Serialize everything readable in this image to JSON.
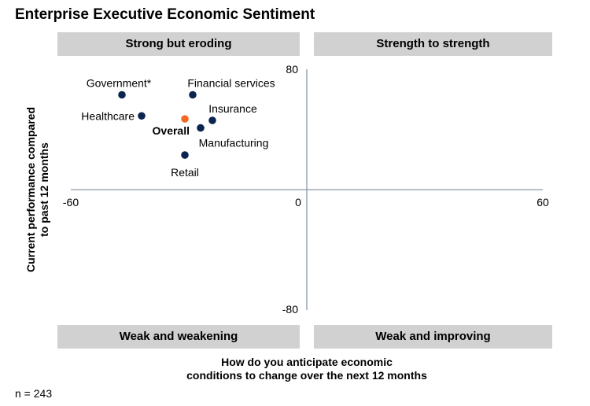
{
  "title": "Enterprise Executive Economic Sentiment",
  "quadrants": {
    "top_left": "Strong but eroding",
    "top_right": "Strength to strength",
    "bottom_left": "Weak and weakening",
    "bottom_right": "Weak and improving"
  },
  "y_axis_label_line1": "Current performance compared",
  "y_axis_label_line2": "to past 12 months",
  "x_axis_label_line1": "How do you anticipate economic",
  "x_axis_label_line2": "conditions to change over the next 12 months",
  "sample_note": "n = 243",
  "colors": {
    "point": "#0b2450",
    "highlight": "#f26a21",
    "axis": "#8c9aa6"
  },
  "chart_data": {
    "type": "scatter",
    "title": "Enterprise Executive Economic Sentiment",
    "xlabel": "How do you anticipate economic conditions to change over the next 12 months",
    "ylabel": "Current performance compared to past 12 months",
    "xlim": [
      -60,
      60
    ],
    "ylim": [
      -80,
      80
    ],
    "x_ticks": [
      "-60",
      "0",
      "60"
    ],
    "y_ticks": [
      "80",
      "-80"
    ],
    "grid": false,
    "points": [
      {
        "label": "Government*",
        "x": -47,
        "y": 63,
        "highlight": false
      },
      {
        "label": "Financial services",
        "x": -29,
        "y": 63,
        "highlight": false
      },
      {
        "label": "Healthcare",
        "x": -42,
        "y": 49,
        "highlight": false
      },
      {
        "label": "Overall",
        "x": -31,
        "y": 47,
        "highlight": true
      },
      {
        "label": "Insurance",
        "x": -24,
        "y": 46,
        "highlight": false
      },
      {
        "label": "Manufacturing",
        "x": -27,
        "y": 41,
        "highlight": false
      },
      {
        "label": "Retail",
        "x": -31,
        "y": 23,
        "highlight": false
      }
    ]
  }
}
